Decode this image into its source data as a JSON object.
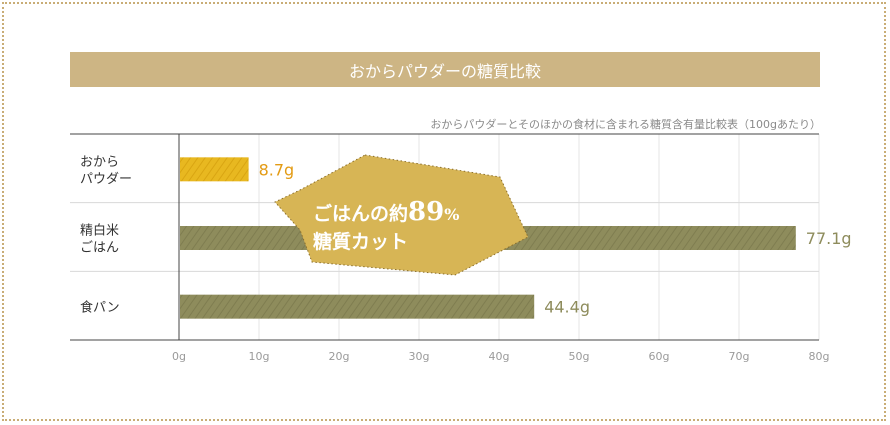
{
  "title": "おからパウダーの糖質比較",
  "subtitle": "おからパウダーとそのほかの食材に含まれる糖質含有量比較表（100gあたり）",
  "callout": {
    "line1_prefix": "ごはんの約",
    "line1_number": "89",
    "line1_unit": "%",
    "line2": "糖質カット"
  },
  "colors": {
    "title_bg": "#cdb584",
    "okara_bar": "#e8b820",
    "okara_label": "#e39b14",
    "other_bar": "#8e8c5c",
    "other_label": "#8e8c5c",
    "callout_fill": "#d7b555"
  },
  "chart_data": {
    "type": "bar",
    "orientation": "horizontal",
    "categories": [
      {
        "lines": [
          "おから",
          "パウダー"
        ]
      },
      {
        "lines": [
          "精白米",
          "ごはん"
        ]
      },
      {
        "lines": [
          "食パン"
        ]
      }
    ],
    "values": [
      8.7,
      77.1,
      44.4
    ],
    "value_labels": [
      "8.7g",
      "77.1g",
      "44.4g"
    ],
    "unit": "g",
    "xlim": [
      0,
      80
    ],
    "ticks": [
      0,
      10,
      20,
      30,
      40,
      50,
      60,
      70,
      80
    ],
    "tick_labels": [
      "0g",
      "10g",
      "20g",
      "30g",
      "40g",
      "50g",
      "60g",
      "70g",
      "80g"
    ],
    "grid": "vertical"
  }
}
